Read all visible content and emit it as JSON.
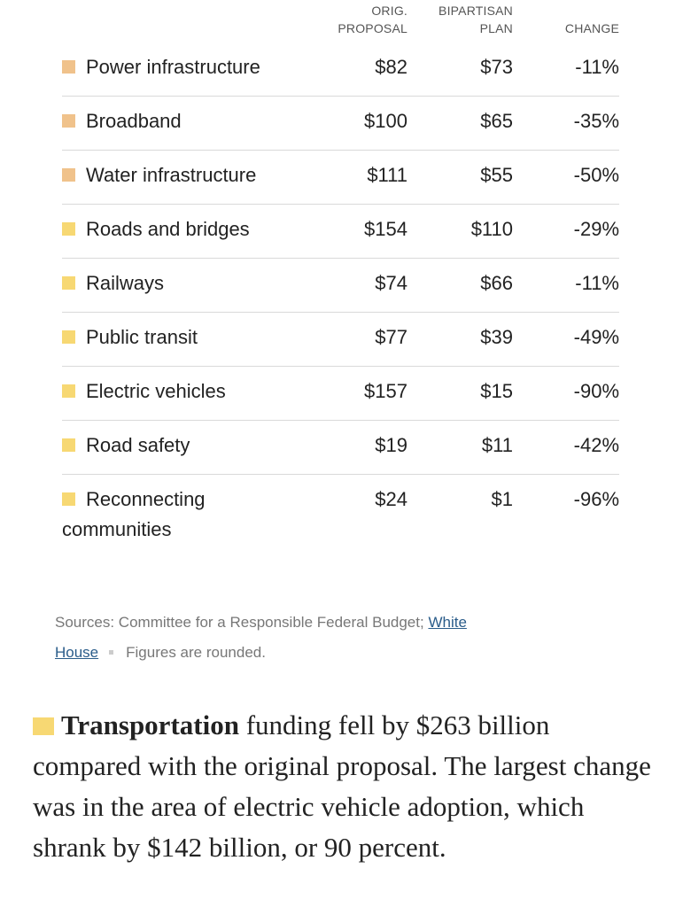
{
  "colors": {
    "energy": "#f0c28b",
    "transportation": "#f7d873",
    "link": "#2a5c8a"
  },
  "chart_data": {
    "type": "table",
    "columns": [
      "ORIG. PROPOSAL",
      "BIPARTISAN PLAN",
      "CHANGE"
    ],
    "rows": [
      {
        "label": "Power infrastructure",
        "group": "energy",
        "orig": "$82",
        "bipartisan": "$73",
        "change": "-11%"
      },
      {
        "label": "Broadband",
        "group": "energy",
        "orig": "$100",
        "bipartisan": "$65",
        "change": "-35%"
      },
      {
        "label": "Water infrastructure",
        "group": "energy",
        "orig": "$111",
        "bipartisan": "$55",
        "change": "-50%"
      },
      {
        "label": "Roads and bridges",
        "group": "transportation",
        "orig": "$154",
        "bipartisan": "$110",
        "change": "-29%"
      },
      {
        "label": "Railways",
        "group": "transportation",
        "orig": "$74",
        "bipartisan": "$66",
        "change": "-11%"
      },
      {
        "label": "Public transit",
        "group": "transportation",
        "orig": "$77",
        "bipartisan": "$39",
        "change": "-49%"
      },
      {
        "label": "Electric vehicles",
        "group": "transportation",
        "orig": "$157",
        "bipartisan": "$15",
        "change": "-90%"
      },
      {
        "label": "Road safety",
        "group": "transportation",
        "orig": "$19",
        "bipartisan": "$11",
        "change": "-42%"
      },
      {
        "label": "Reconnecting communities",
        "group": "transportation",
        "orig": "$24",
        "bipartisan": "$1",
        "change": "-96%"
      }
    ]
  },
  "header": {
    "orig_line1": "ORIG.",
    "orig_line2": "PROPOSAL",
    "bip_line1": "BIPARTISAN",
    "bip_line2": "PLAN",
    "change": "CHANGE"
  },
  "sources": {
    "prefix": "Sources: Committee for a Responsible Federal Budget; ",
    "link_part1": "White",
    "link_part2": "House",
    "note": "Figures are rounded."
  },
  "summary": {
    "bold": "Transportation",
    "text": " funding fell by $263 billion compared with the original proposal. The largest change was in the area of electric vehicle adoption, which shrank by $142 billion, or 90 percent."
  }
}
